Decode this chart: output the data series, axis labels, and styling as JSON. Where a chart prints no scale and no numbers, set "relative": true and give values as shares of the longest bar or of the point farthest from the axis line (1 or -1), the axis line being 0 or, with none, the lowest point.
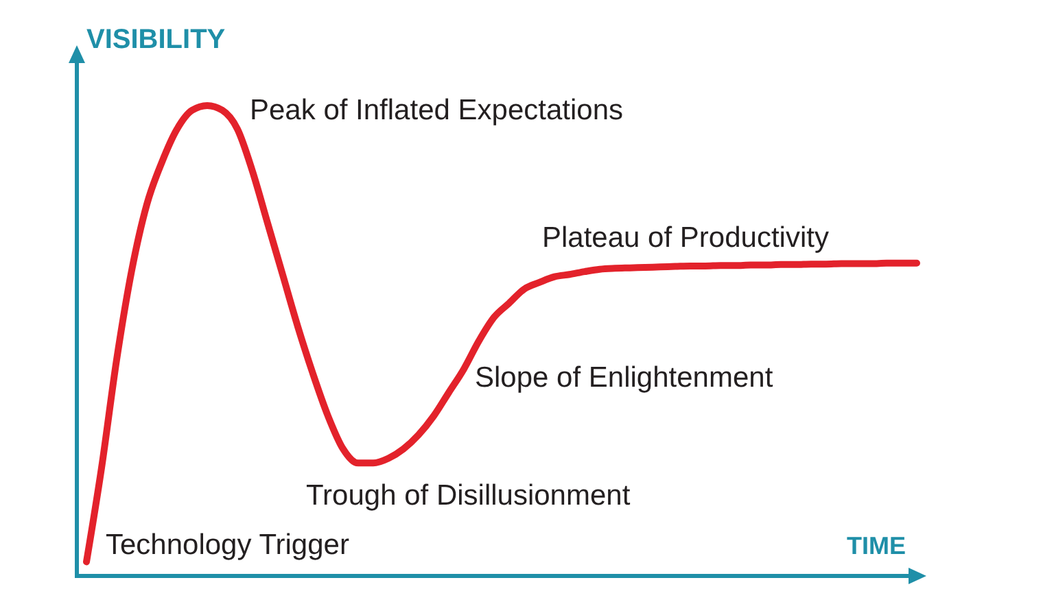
{
  "chart_data": {
    "type": "line",
    "relative": true,
    "xlabel": "TIME",
    "ylabel": "VISIBILITY",
    "color": "#e3222b",
    "categories": [
      null,
      null,
      null,
      null,
      null,
      null,
      null,
      null,
      null,
      null,
      null,
      null,
      null,
      null,
      null,
      null,
      null,
      null,
      null,
      null,
      null,
      null,
      null,
      null,
      null,
      null,
      null,
      null,
      null,
      null,
      null,
      null,
      null,
      null,
      null,
      null,
      null,
      null,
      null,
      null,
      null,
      null,
      null,
      null,
      null,
      null,
      null,
      null,
      null,
      null,
      null,
      null,
      null,
      null,
      null,
      null
    ],
    "values": [
      0.03,
      0.23,
      0.46,
      0.65,
      0.79,
      0.88,
      0.95,
      0.99,
      1,
      0.99,
      0.95,
      0.86,
      0.75,
      0.64,
      0.53,
      0.43,
      0.34,
      0.27,
      0.24,
      0.24,
      0.25,
      0.27,
      0.3,
      0.34,
      0.39,
      0.44,
      0.5,
      0.55,
      0.58,
      0.61,
      0.624,
      0.636,
      0.641,
      0.647,
      0.652,
      0.654,
      0.655,
      0.656,
      0.657,
      0.658,
      0.659,
      0.659,
      0.66,
      0.66,
      0.661,
      0.661,
      0.662,
      0.662,
      0.663,
      0.663,
      0.664,
      0.664,
      0.664,
      0.665,
      0.665,
      0.665
    ],
    "annotations": [
      "Technology Trigger",
      "Peak of Inflated Expectations",
      "Trough of Disillusionment",
      "Slope of Enlightenment",
      "Plateau of Productivity"
    ]
  }
}
